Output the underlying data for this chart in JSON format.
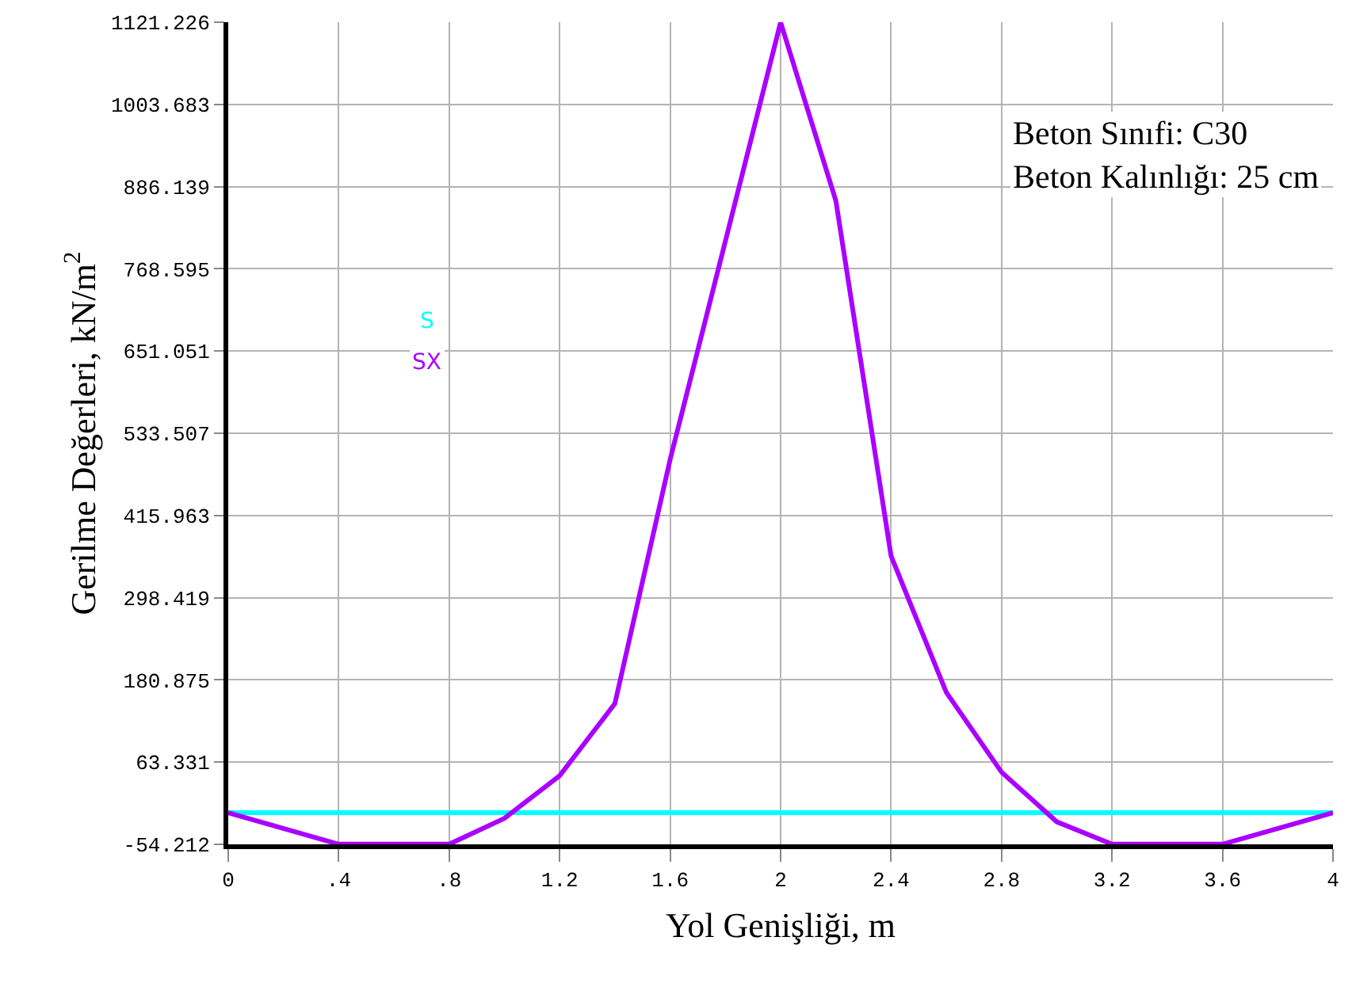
{
  "chart_data": {
    "type": "line",
    "xlabel": "Yol Genişliği, m",
    "ylabel": "Gerilme Değerleri, kN/m$^{2}$",
    "annotations": [
      "Beton Sınıfi: C30\nBeton Kalınlığı: 25 cm"
    ],
    "series": [
      {
        "name": "S",
        "color": "#00ffff",
        "x": [
          0,
          4
        ],
        "values": [
          -9,
          -9
        ]
      },
      {
        "name": "SX",
        "color": "#aa00ff",
        "x": [
          0,
          0.4,
          0.8,
          1.0,
          1.2,
          1.4,
          1.6,
          1.8,
          2.0,
          2.2,
          2.4,
          2.6,
          2.8,
          3.0,
          3.2,
          3.6,
          4.0
        ],
        "values": [
          -9,
          -54,
          -54,
          -17,
          44,
          147,
          496,
          808,
          1121,
          866,
          358,
          163,
          49,
          -22,
          -54,
          -54,
          -9
        ]
      }
    ],
    "xlim": [
      0,
      4
    ],
    "ylim": [
      -54.212,
      1121.226
    ],
    "xticks": [
      0,
      {
        "value": 0.4,
        "label": ".4"
      },
      {
        "value": 0.8,
        "label": ".8"
      },
      1.2,
      1.6,
      2,
      2.4,
      2.8,
      3.2,
      3.6,
      4
    ],
    "yticks": [
      -54.212,
      63.331,
      180.875,
      298.419,
      415.963,
      533.507,
      651.051,
      768.595,
      886.139,
      1003.683,
      1121.226
    ],
    "grid": true,
    "legend": false,
    "marker": "none",
    "line_style": "solid"
  }
}
